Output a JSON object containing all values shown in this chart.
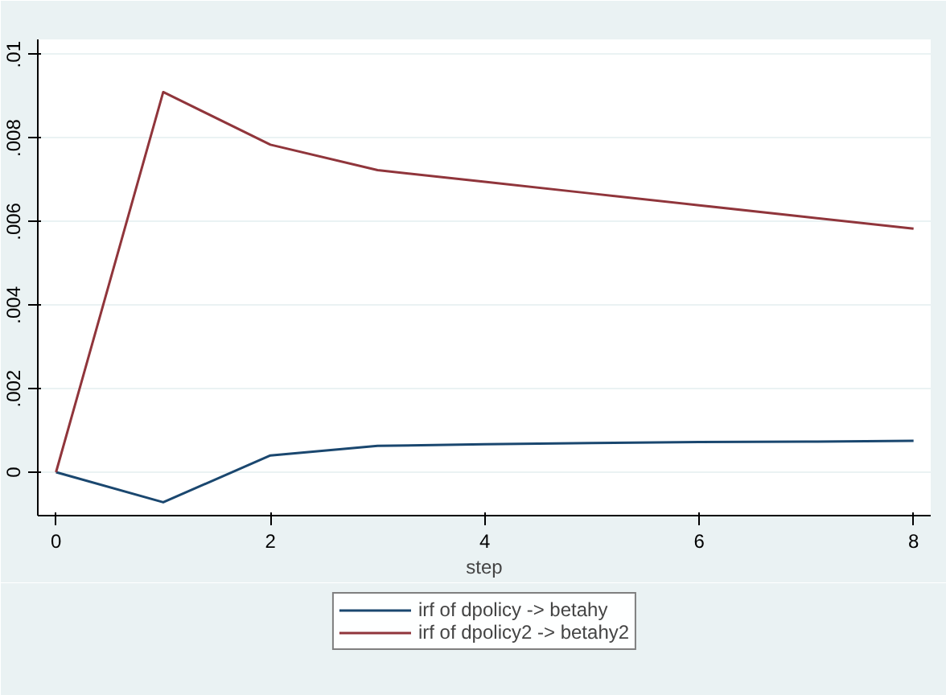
{
  "chart_data": {
    "type": "line",
    "xlabel": "step",
    "x": [
      0,
      1,
      2,
      3,
      4,
      5,
      6,
      7,
      8
    ],
    "series": [
      {
        "name": "irf of dpolicy -> betahy",
        "color": "#1a476f",
        "values": [
          0,
          -0.00072,
          0.0004,
          0.00063,
          0.00067,
          0.0007,
          0.00072,
          0.00073,
          0.00075
        ]
      },
      {
        "name": "irf of dpolicy2 -> betahy2",
        "color": "#90353b",
        "values": [
          0,
          0.0091,
          0.00784,
          0.00723,
          0.00695,
          0.00667,
          0.00639,
          0.00611,
          0.00583
        ]
      }
    ],
    "xlim": [
      -0.17,
      8.16
    ],
    "ylim": [
      -0.00104,
      0.01036
    ],
    "xticks": [
      0,
      2,
      4,
      6,
      8
    ],
    "yticks": [
      {
        "value": 0,
        "label": "0"
      },
      {
        "value": 0.002,
        "label": ".002"
      },
      {
        "value": 0.004,
        "label": ".004"
      },
      {
        "value": 0.006,
        "label": ".006"
      },
      {
        "value": 0.008,
        "label": ".008"
      },
      {
        "value": 0.01,
        "label": ".01"
      }
    ],
    "grid": "y",
    "legend": "bottom",
    "marker": "none",
    "line_style": "solid"
  }
}
